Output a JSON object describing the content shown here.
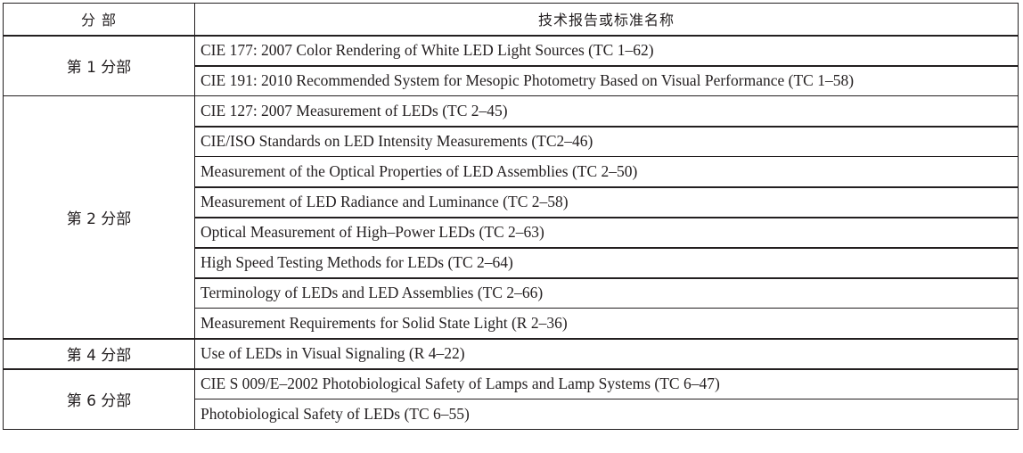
{
  "table": {
    "headers": {
      "part": "分 部",
      "name": "技术报告或标准名称"
    },
    "groups": [
      {
        "part": "第 1 分部",
        "items": [
          "CIE 177: 2007 Color Rendering of White LED Light Sources (TC 1–62)",
          "CIE 191: 2010 Recommended System for Mesopic Photometry Based on Visual Performance (TC 1–58)"
        ]
      },
      {
        "part": "第 2 分部",
        "items": [
          "CIE 127: 2007 Measurement of LEDs (TC 2–45)",
          "CIE/ISO Standards on LED Intensity Measurements (TC2–46)",
          "Measurement of the Optical Properties of LED Assemblies (TC 2–50)",
          "Measurement of LED Radiance and Luminance (TC 2–58)",
          "Optical Measurement of High–Power LEDs (TC 2–63)",
          "High Speed Testing Methods for LEDs (TC 2–64)",
          "Terminology of LEDs and LED Assemblies (TC 2–66)",
          "Measurement Requirements for Solid State Light (R 2–36)"
        ]
      },
      {
        "part": "第 4 分部",
        "items": [
          "Use of LEDs in Visual Signaling (R 4–22)"
        ]
      },
      {
        "part": "第 6 分部",
        "items": [
          "CIE S 009/E–2002 Photobiological Safety of Lamps and Lamp Systems (TC 6–47)",
          "Photobiological Safety of LEDs (TC 6–55)"
        ]
      }
    ]
  }
}
